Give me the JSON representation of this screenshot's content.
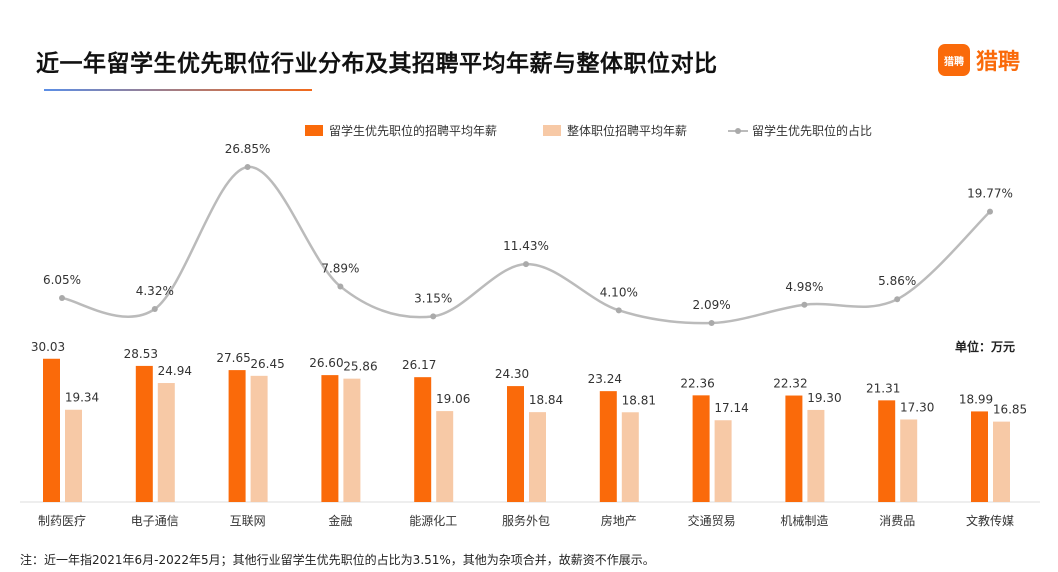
{
  "header": {
    "title": "近一年留学生优先职位行业分布及其招聘平均年薪与整体职位对比",
    "logo_text": "猎聘",
    "logo_icon_text": "猎聘"
  },
  "unit": "单位：万元",
  "note": "注：近一年指2021年6月-2022年5月；其他行业留学生优先职位的占比为3.51%，其他为杂项合并，故薪资不作展示。",
  "colors": {
    "bar1": "#fa6a0a",
    "bar2": "#f7c9a6",
    "line": "#bbbbbb"
  },
  "chart_data": {
    "type": "bar+line",
    "categories": [
      "制药医疗",
      "电子通信",
      "互联网",
      "金融",
      "能源化工",
      "服务外包",
      "房地产",
      "交通贸易",
      "机械制造",
      "消费品",
      "文教传媒"
    ],
    "series": [
      {
        "name": "留学生优先职位的招聘平均年薪",
        "type": "bar",
        "values": [
          30.03,
          28.53,
          27.65,
          26.6,
          26.17,
          24.3,
          23.24,
          22.36,
          22.32,
          21.31,
          18.99
        ]
      },
      {
        "name": "整体职位招聘平均年薪",
        "type": "bar",
        "values": [
          19.34,
          24.94,
          26.45,
          25.86,
          19.06,
          18.84,
          18.81,
          17.14,
          19.3,
          17.3,
          16.85
        ]
      },
      {
        "name": "留学生优先职位的占比",
        "type": "line",
        "unit": "%",
        "values": [
          6.05,
          4.32,
          26.85,
          7.89,
          3.15,
          11.43,
          4.1,
          2.09,
          4.98,
          5.86,
          19.77
        ]
      }
    ],
    "legend_position": "top"
  }
}
